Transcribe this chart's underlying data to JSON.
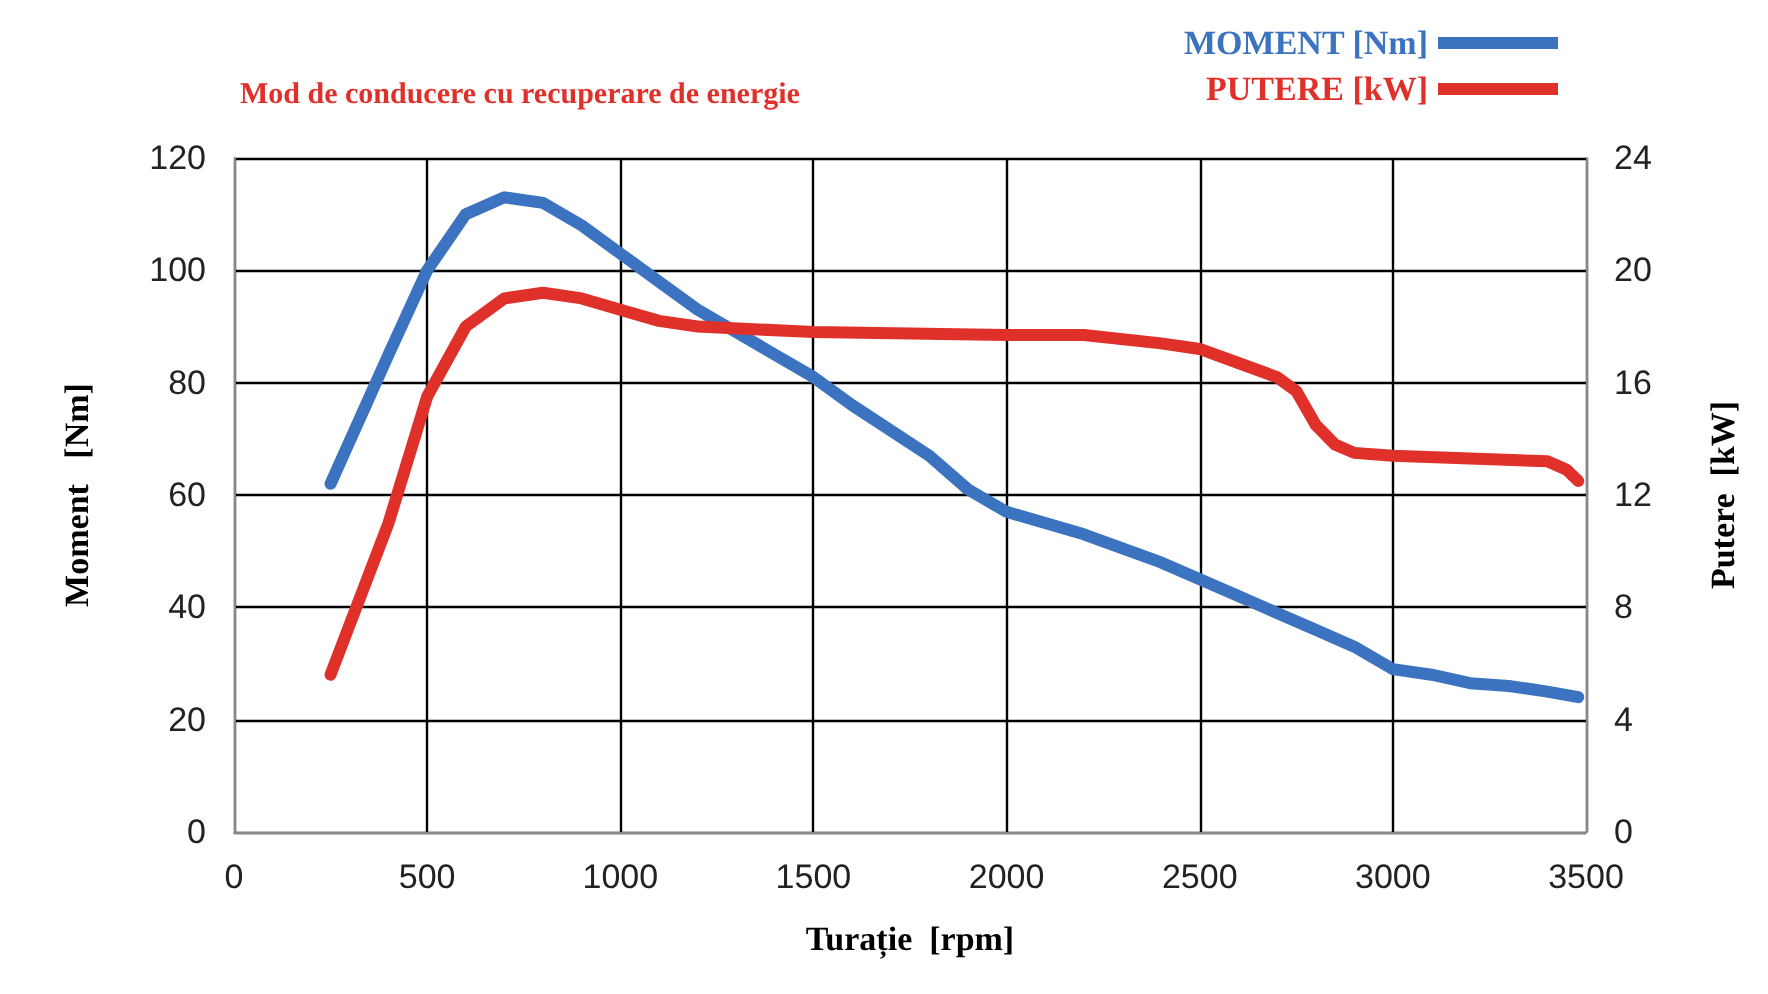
{
  "chart_data": {
    "type": "line",
    "title": "Mod de conducere cu recuperare de energie",
    "xlabel": "Turație  [rpm]",
    "ylabel": "Moment   [Nm]",
    "y2label": "Putere  [kW]",
    "xlim": [
      0,
      3500
    ],
    "xticks": [
      0,
      500,
      1000,
      1500,
      2000,
      2500,
      3000,
      3500
    ],
    "ylim": [
      0,
      120
    ],
    "yticks": [
      0,
      20,
      40,
      60,
      80,
      100,
      120
    ],
    "y2lim": [
      0,
      24
    ],
    "y2ticks": [
      0,
      4,
      8,
      12,
      16,
      20,
      24
    ],
    "grid": true,
    "legend": "top right",
    "marker": "none",
    "line_style": "solid",
    "series": [
      {
        "name": "MOMENT [Nm]",
        "color": "#3b73c0",
        "x": [
          250,
          400,
          500,
          600,
          700,
          800,
          900,
          1000,
          1100,
          1200,
          1400,
          1500,
          1600,
          1800,
          1900,
          2000,
          2200,
          2400,
          2500,
          2600,
          2700,
          2800,
          2900,
          3000,
          3100,
          3200,
          3300,
          3400,
          3480
        ],
        "values": [
          62,
          85,
          100,
          110,
          113,
          112,
          108,
          103,
          98,
          93,
          85,
          81,
          76,
          67,
          61,
          57,
          53,
          48,
          45,
          42,
          39,
          36,
          33,
          29,
          28,
          26.5,
          26,
          25,
          24
        ]
      },
      {
        "name": "PUTERE [kW]",
        "color": "#e0302a",
        "axis": "y2",
        "x": [
          250,
          400,
          500,
          600,
          700,
          800,
          900,
          1000,
          1100,
          1200,
          1500,
          2000,
          2200,
          2400,
          2500,
          2600,
          2700,
          2750,
          2800,
          2850,
          2900,
          3000,
          3200,
          3400,
          3450,
          3480
        ],
        "values": [
          5.6,
          11,
          15.5,
          18,
          19,
          19.2,
          19,
          18.6,
          18.2,
          18,
          17.8,
          17.7,
          17.7,
          17.4,
          17.2,
          16.7,
          16.2,
          15.7,
          14.5,
          13.8,
          13.5,
          13.4,
          13.3,
          13.2,
          12.9,
          12.5
        ]
      }
    ]
  }
}
